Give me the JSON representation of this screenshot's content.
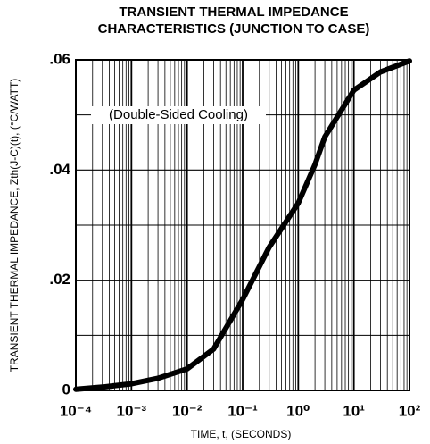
{
  "chart_data": {
    "type": "line",
    "title": [
      "TRANSIENT THERMAL IMPEDANCE",
      "CHARACTERISTICS (JUNCTION TO CASE)"
    ],
    "xlabel": "TIME, t, (SECONDS)",
    "ylabel": "TRANSIENT THERMAL IMPEDANCE, Zth(J-C)(t), (°C/WATT)",
    "annotation": "(Double-Sided Cooling)",
    "xscale": "log",
    "xlim": [
      0.0001,
      100
    ],
    "ylim": [
      0,
      0.06
    ],
    "xticks": [
      {
        "value": 0.0001,
        "label": "10⁻⁴"
      },
      {
        "value": 0.001,
        "label": "10⁻³"
      },
      {
        "value": 0.01,
        "label": "10⁻²"
      },
      {
        "value": 0.1,
        "label": "10⁻¹"
      },
      {
        "value": 1,
        "label": "10⁰"
      },
      {
        "value": 10,
        "label": "10¹"
      },
      {
        "value": 100,
        "label": "10²"
      }
    ],
    "yticks": [
      0,
      {
        "value": 0.02,
        "label": ".02"
      },
      {
        "value": 0.04,
        "label": ".04"
      },
      {
        "value": 0.06,
        "label": ".06"
      }
    ],
    "ygrid": [
      0.01,
      0.03,
      0.05
    ],
    "grid": true,
    "minor_grid": true,
    "series": [
      {
        "color": "#000000",
        "x": [
          0.0001,
          0.0003,
          0.001,
          0.003,
          0.01,
          0.03,
          0.1,
          0.3,
          1,
          2,
          3,
          10,
          30,
          100
        ],
        "values": [
          0.0002,
          0.0006,
          0.0012,
          0.0022,
          0.0039,
          0.0075,
          0.0165,
          0.026,
          0.034,
          0.041,
          0.046,
          0.0545,
          0.0578,
          0.0598
        ]
      }
    ]
  }
}
